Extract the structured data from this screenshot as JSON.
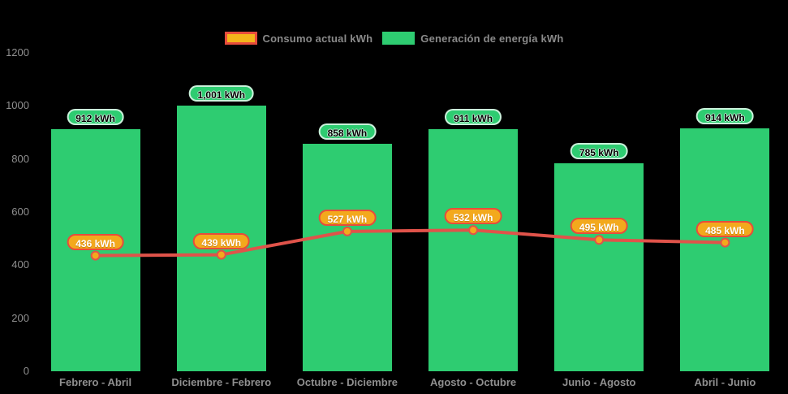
{
  "chart_data": {
    "type": "combo",
    "categories": [
      "Febrero - Abril",
      "Diciembre - Febrero",
      "Octubre - Diciembre",
      "Agosto - Octubre",
      "Junio - Agosto",
      "Abril - Junio"
    ],
    "series": [
      {
        "name": "Consumo actual kWh",
        "type": "line",
        "values": [
          436,
          439,
          527,
          532,
          495,
          485
        ],
        "labels": [
          "436 kWh",
          "439 kWh",
          "527 kWh",
          "532 kWh",
          "495 kWh",
          "485 kWh"
        ],
        "color": "#e0534a"
      },
      {
        "name": "Generación de energía kWh",
        "type": "bar",
        "values": [
          912,
          1001,
          858,
          911,
          785,
          914
        ],
        "labels": [
          "912 kWh",
          "1,001 kWh",
          "858 kWh",
          "911 kWh",
          "785 kWh",
          "914 kWh"
        ],
        "color": "#2ecc71"
      }
    ],
    "ylim": [
      0,
      1200
    ],
    "y_ticks": [
      "0",
      "200",
      "400",
      "600",
      "800",
      "1000",
      "1200"
    ],
    "grid": false,
    "legend_position": "top",
    "value_suffix": " kWh"
  },
  "colors": {
    "background": "#000000",
    "bar": "#2ecc71",
    "line": "#e0534a",
    "marker_fill": "#f3a91d",
    "marker_stroke": "#e0534a",
    "bar_pill_bg": "#2ecc71",
    "line_pill_bg": "#f3a91d",
    "line_pill_border": "#e74c3c",
    "axis_text": "#8f8f8f",
    "legend_text": "#8a8a8a",
    "legend_line_swatch_fill": "#f3b41b",
    "legend_line_swatch_border": "#e74c3c"
  }
}
